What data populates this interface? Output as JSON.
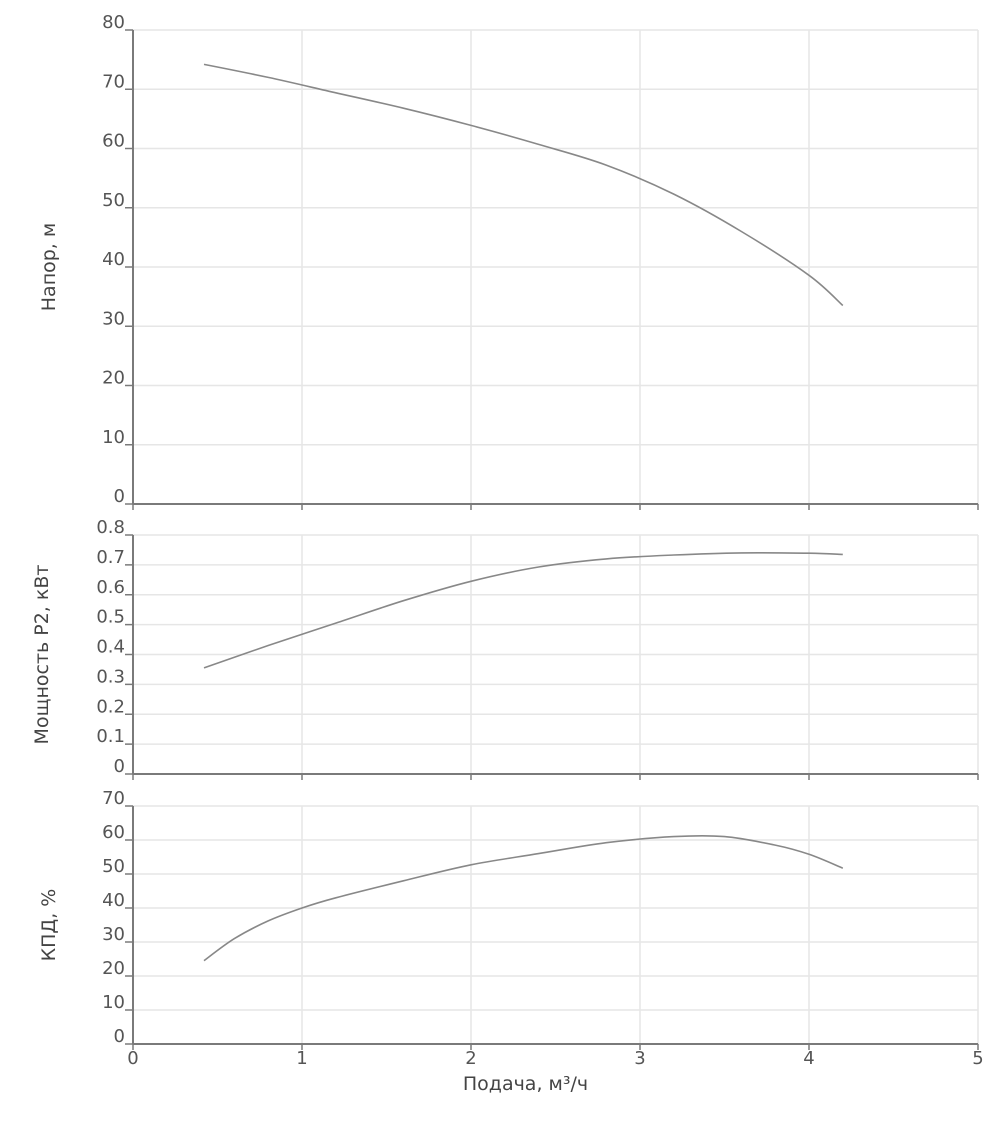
{
  "chart_data": [
    {
      "type": "line",
      "title": "",
      "xlabel": "",
      "ylabel": "Напор, м",
      "xlim": [
        0,
        5
      ],
      "ylim": [
        0,
        80
      ],
      "yticks": [
        "0",
        "10",
        "20",
        "30",
        "40",
        "50",
        "60",
        "70",
        "80"
      ],
      "grid": true,
      "series": [
        {
          "x": [
            0.42,
            0.8,
            1.2,
            1.6,
            2.0,
            2.4,
            2.8,
            3.2,
            3.6,
            4.0,
            4.2
          ],
          "values": [
            74.2,
            72.0,
            69.4,
            66.8,
            63.9,
            60.7,
            57.2,
            52.3,
            46.0,
            38.6,
            33.5
          ]
        }
      ]
    },
    {
      "type": "line",
      "title": "",
      "xlabel": "",
      "ylabel": "Мощность P2, кВт",
      "xlim": [
        0,
        5
      ],
      "ylim": [
        0,
        0.8
      ],
      "yticks": [
        "0",
        "0.1",
        "0.2",
        "0.3",
        "0.4",
        "0.5",
        "0.6",
        "0.7",
        "0.8"
      ],
      "grid": true,
      "series": [
        {
          "x": [
            0.42,
            0.8,
            1.2,
            1.6,
            2.0,
            2.4,
            2.8,
            3.2,
            3.6,
            4.0,
            4.2
          ],
          "values": [
            0.355,
            0.43,
            0.505,
            0.58,
            0.645,
            0.693,
            0.72,
            0.733,
            0.74,
            0.739,
            0.735
          ]
        }
      ]
    },
    {
      "type": "line",
      "title": "",
      "xlabel": "Подача, м³/ч",
      "ylabel": "КПД, %",
      "xlim": [
        0,
        5
      ],
      "ylim": [
        0,
        70
      ],
      "yticks": [
        "0",
        "10",
        "20",
        "30",
        "40",
        "50",
        "60",
        "70"
      ],
      "xticks": [
        "0",
        "1",
        "2",
        "3",
        "4",
        "5"
      ],
      "grid": true,
      "series": [
        {
          "x": [
            0.42,
            0.6,
            0.8,
            1.0,
            1.2,
            1.6,
            2.0,
            2.4,
            2.8,
            3.2,
            3.5,
            3.8,
            4.0,
            4.2
          ],
          "values": [
            24.5,
            31.0,
            36.2,
            40.0,
            43.0,
            48.0,
            52.7,
            56.0,
            59.2,
            61.0,
            61.0,
            58.5,
            55.8,
            51.7
          ]
        }
      ]
    }
  ]
}
